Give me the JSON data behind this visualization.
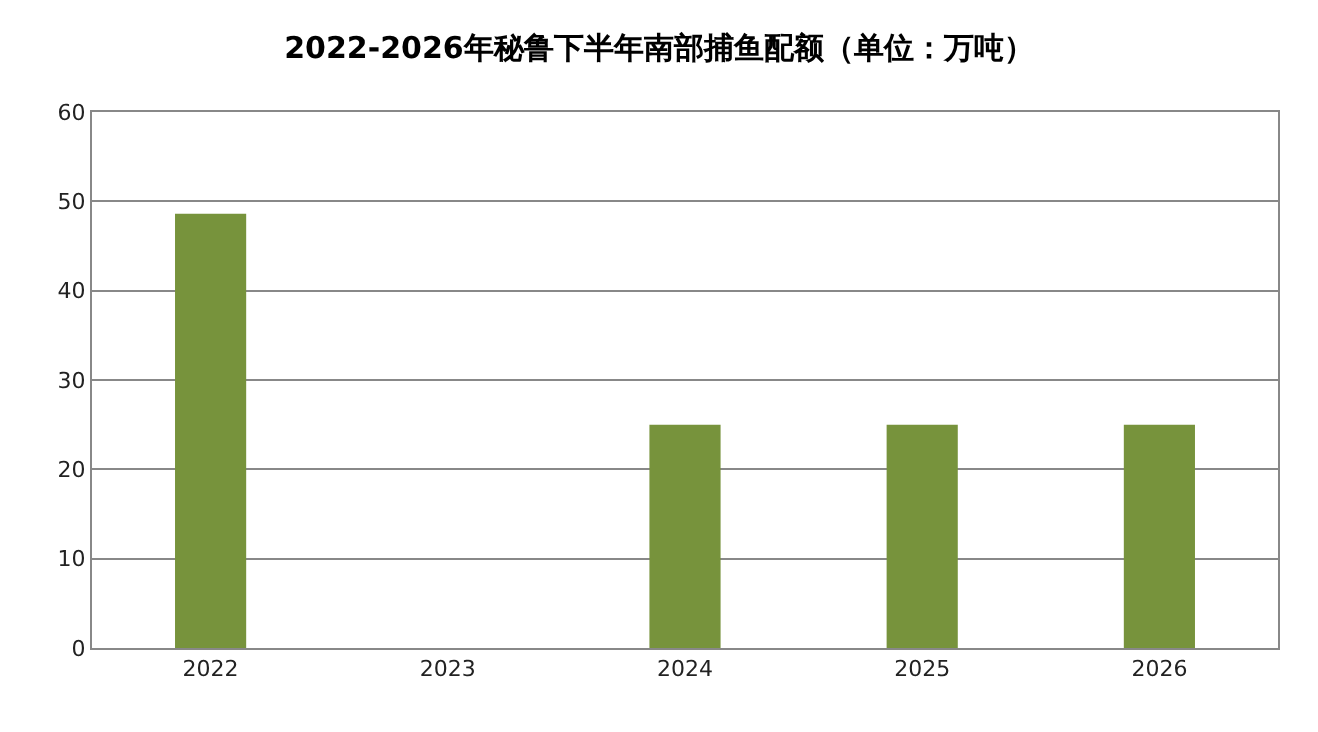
{
  "chart_data": {
    "type": "bar",
    "title": "2022-2026年秘鲁下半年南部捕鱼配额（单位：万吨）",
    "categories": [
      "2022",
      "2023",
      "2024",
      "2025",
      "2026"
    ],
    "values": [
      48.6,
      0,
      25,
      25,
      25
    ],
    "color": "#77933c",
    "ylim": [
      0,
      60
    ],
    "yticks": [
      0,
      10,
      20,
      30,
      40,
      50,
      60
    ],
    "grid": "y",
    "legend": false
  }
}
